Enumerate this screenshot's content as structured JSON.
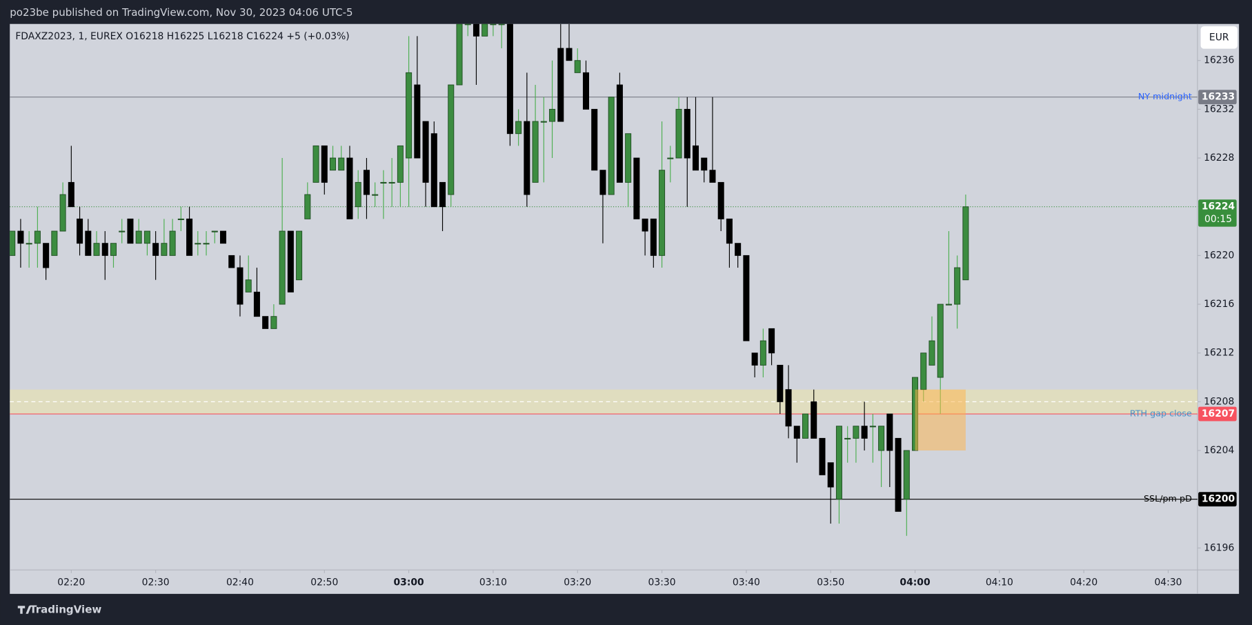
{
  "header": {
    "title": "po23be published on TradingView.com, Nov 30, 2023 04:06 UTC-5",
    "currency": "EUR",
    "brand": "TradingView"
  },
  "chart_data": {
    "type": "candlestick",
    "legend": {
      "symbol": "FDAXZ2023, 1, EUREX",
      "ohlc": [
        "O16218",
        "H16225",
        "L16218",
        "C16224"
      ],
      "change": "+5 (+0.03%)"
    },
    "x": [
      "02:13",
      "02:14",
      "02:15",
      "02:16",
      "02:17",
      "02:18",
      "02:19",
      "02:20",
      "02:21",
      "02:22",
      "02:23",
      "02:24",
      "02:25",
      "02:26",
      "02:27",
      "02:28",
      "02:29",
      "02:30",
      "02:31",
      "02:32",
      "02:33",
      "02:34",
      "02:35",
      "02:36",
      "02:37",
      "02:38",
      "02:39",
      "02:40",
      "02:41",
      "02:42",
      "02:43",
      "02:44",
      "02:45",
      "02:46",
      "02:47",
      "02:48",
      "02:49",
      "02:50",
      "02:51",
      "02:52",
      "02:53",
      "02:54",
      "02:55",
      "02:56",
      "02:57",
      "02:58",
      "02:59",
      "03:00",
      "03:01",
      "03:02",
      "03:03",
      "03:04",
      "03:05",
      "03:06",
      "03:07",
      "03:08",
      "03:09",
      "03:10",
      "03:11",
      "03:12",
      "03:13",
      "03:14",
      "03:15",
      "03:16",
      "03:17",
      "03:18",
      "03:19",
      "03:20",
      "03:21",
      "03:22",
      "03:23",
      "03:24",
      "03:25",
      "03:26",
      "03:27",
      "03:28",
      "03:29",
      "03:30",
      "03:31",
      "03:32",
      "03:33",
      "03:34",
      "03:35",
      "03:36",
      "03:37",
      "03:38",
      "03:39",
      "03:40",
      "03:41",
      "03:42",
      "03:43",
      "03:44",
      "03:45",
      "03:46",
      "03:47",
      "03:48",
      "03:49",
      "03:50",
      "03:51",
      "03:52",
      "03:53",
      "03:54",
      "03:55",
      "03:56",
      "03:57",
      "03:58",
      "03:59",
      "04:00",
      "04:01",
      "04:02",
      "04:03",
      "04:04",
      "04:05",
      "04:06"
    ],
    "open": [
      16220,
      16222,
      16221,
      16221,
      16221,
      16220,
      16222,
      16226,
      16223,
      16222,
      16220,
      16221,
      16220,
      16222,
      16223,
      16221,
      16221,
      16221,
      16220,
      16220,
      16223,
      16223,
      16221,
      16221,
      16222,
      16222,
      16220,
      16219,
      16217,
      16217,
      16215,
      16214,
      16216,
      16222,
      16218,
      16223,
      16226,
      16229,
      16227,
      16227,
      16228,
      16224,
      16227,
      16225,
      16226,
      16226,
      16226,
      16228,
      16234,
      16231,
      16230,
      16226,
      16225,
      16234,
      16239,
      16239,
      16238,
      16239,
      16239,
      16239,
      16230,
      16231,
      16226,
      16231,
      16231,
      16237,
      16237,
      16235,
      16235,
      16232,
      16227,
      16225,
      16234,
      16226,
      16228,
      16223,
      16223,
      16220,
      16228,
      16228,
      16232,
      16229,
      16228,
      16227,
      16226,
      16223,
      16221,
      16220,
      16212,
      16211,
      16214,
      16211,
      16209,
      16206,
      16205,
      16208,
      16205,
      16203,
      16200,
      16205,
      16205,
      16206,
      16206,
      16204,
      16207,
      16205,
      16200,
      16204,
      16209,
      16211,
      16210,
      16216,
      16216,
      16218
    ],
    "high": [
      16222,
      16223,
      16222,
      16224,
      16221,
      16222,
      16226,
      16229,
      16224,
      16223,
      16222,
      16222,
      16221,
      16223,
      16223,
      16223,
      16222,
      16222,
      16223,
      16223,
      16224,
      16224,
      16222,
      16222,
      16222,
      16222,
      16220,
      16220,
      16220,
      16219,
      16215,
      16216,
      16228,
      16222,
      16222,
      16226,
      16229,
      16229,
      16229,
      16229,
      16229,
      16227,
      16228,
      16226,
      16227,
      16228,
      16229,
      16238,
      16238,
      16231,
      16231,
      16226,
      16234,
      16241,
      16240,
      16239,
      16240,
      16240,
      16240,
      16240,
      16232,
      16235,
      16234,
      16233,
      16236,
      16239,
      16239,
      16237,
      16236,
      16232,
      16227,
      16233,
      16235,
      16230,
      16228,
      16223,
      16223,
      16231,
      16229,
      16233,
      16233,
      16233,
      16228,
      16233,
      16226,
      16223,
      16221,
      16220,
      16212,
      16214,
      16214,
      16211,
      16211,
      16206,
      16207,
      16209,
      16205,
      16203,
      16206,
      16206,
      16206,
      16208,
      16207,
      16206,
      16207,
      16205,
      16204,
      16210,
      16212,
      16215,
      16216,
      16222,
      16220,
      16225
    ],
    "low": [
      16220,
      16219,
      16219,
      16219,
      16218,
      16220,
      16222,
      16224,
      16220,
      16220,
      16220,
      16218,
      16219,
      16221,
      16221,
      16221,
      16220,
      16218,
      16220,
      16220,
      16222,
      16220,
      16220,
      16220,
      16221,
      16221,
      16219,
      16215,
      16217,
      16215,
      16214,
      16214,
      16216,
      16217,
      16218,
      16223,
      16226,
      16225,
      16227,
      16227,
      16223,
      16223,
      16223,
      16224,
      16223,
      16224,
      16224,
      16224,
      16228,
      16224,
      16224,
      16222,
      16224,
      16234,
      16238,
      16234,
      16238,
      16238,
      16237,
      16229,
      16229,
      16224,
      16226,
      16226,
      16228,
      16231,
      16236,
      16235,
      16232,
      16227,
      16221,
      16225,
      16226,
      16224,
      16223,
      16220,
      16219,
      16219,
      16226,
      16228,
      16224,
      16227,
      16226,
      16226,
      16222,
      16219,
      16219,
      16213,
      16210,
      16210,
      16211,
      16207,
      16205,
      16203,
      16205,
      16205,
      16202,
      16198,
      16198,
      16203,
      16203,
      16204,
      16203,
      16201,
      16201,
      16199,
      16197,
      16204,
      16208,
      16211,
      16207,
      16216,
      16214,
      16218
    ],
    "close": [
      16222,
      16221,
      16221,
      16222,
      16219,
      16222,
      16225,
      16224,
      16221,
      16220,
      16221,
      16220,
      16221,
      16222,
      16221,
      16222,
      16222,
      16220,
      16221,
      16222,
      16223,
      16220,
      16221,
      16221,
      16222,
      16221,
      16219,
      16216,
      16218,
      16215,
      16214,
      16215,
      16222,
      16217,
      16222,
      16225,
      16229,
      16226,
      16228,
      16228,
      16223,
      16226,
      16225,
      16225,
      16226,
      16226,
      16229,
      16235,
      16228,
      16226,
      16224,
      16224,
      16234,
      16239,
      16239,
      16238,
      16239,
      16239,
      16239,
      16230,
      16231,
      16225,
      16231,
      16231,
      16232,
      16231,
      16236,
      16236,
      16232,
      16227,
      16225,
      16233,
      16226,
      16230,
      16223,
      16222,
      16220,
      16227,
      16228,
      16232,
      16228,
      16227,
      16227,
      16226,
      16223,
      16221,
      16220,
      16213,
      16211,
      16213,
      16212,
      16208,
      16206,
      16205,
      16207,
      16205,
      16202,
      16201,
      16206,
      16205,
      16206,
      16205,
      16206,
      16206,
      16204,
      16199,
      16204,
      16210,
      16212,
      16213,
      16216,
      16216,
      16219,
      16224
    ],
    "up_color": "#3c8c40",
    "down_color": "#000000",
    "xlim": [
      "02:13",
      "04:33"
    ],
    "xticks": [
      "02:20",
      "02:30",
      "02:40",
      "02:50",
      "03:00",
      "03:10",
      "03:20",
      "03:30",
      "03:40",
      "03:50",
      "04:00",
      "04:10",
      "04:20",
      "04:30"
    ],
    "ylim": [
      16194.2,
      16239
    ],
    "yticks": [
      16196,
      16200,
      16204,
      16208,
      16212,
      16216,
      16220,
      16224,
      16228,
      16232,
      16236
    ],
    "levels": [
      {
        "label": "NY midnight",
        "value": 16233,
        "color": "#787b86",
        "label_color": "#2962ff"
      },
      {
        "label": "RTH gap close",
        "value": 16207,
        "color": "#f7525f",
        "label_color": "#4a90c8"
      },
      {
        "label": "SSL/pm pD",
        "value": 16200,
        "color": "#000000",
        "label_color": "#000000"
      }
    ],
    "last_price": {
      "value": 16224,
      "countdown": "00:15",
      "color": "#388e3c"
    },
    "zone": {
      "low": 16207,
      "high": 16209,
      "mid": 16208,
      "color": "#ede3a8"
    },
    "box": {
      "x": [
        "04:00",
        "04:06"
      ],
      "low": 16204,
      "high": 16209,
      "color": "#ffb347"
    }
  }
}
